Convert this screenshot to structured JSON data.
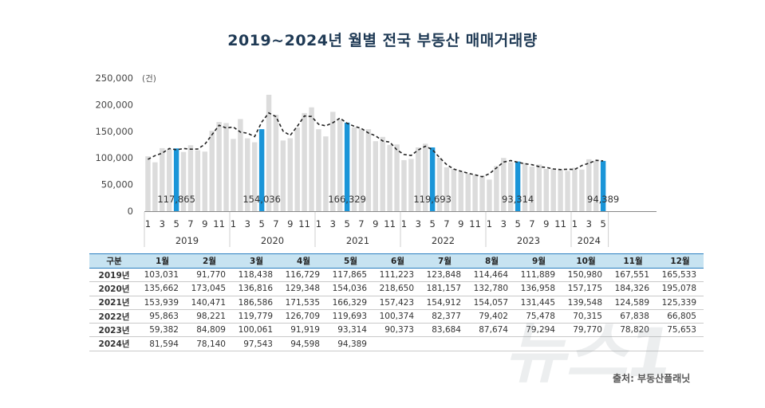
{
  "title": "2019~2024년 월별 전국 부동산 매매거래량",
  "source": "출처: 부동산플래닛",
  "watermark_text": "뉴스1",
  "colors": {
    "bar": "#dcdcdc",
    "highlight": "#1a95d8",
    "line": "#222222",
    "axis": "#888888",
    "header_bg": "#c7e3f1"
  },
  "chart_data": {
    "type": "bar",
    "unit": "(건)",
    "ylim": [
      0,
      250000
    ],
    "yticks": [
      "250,000",
      "200,000",
      "150,000",
      "100,000",
      "50,000",
      "0"
    ],
    "ytick_values": [
      250000,
      200000,
      150000,
      100000,
      50000,
      0
    ],
    "month_ticks": [
      "1",
      "3",
      "5",
      "7",
      "9",
      "11"
    ],
    "years": [
      "2019",
      "2020",
      "2021",
      "2022",
      "2023",
      "2024"
    ],
    "values": [
      103031,
      91770,
      118438,
      116729,
      117865,
      111223,
      123848,
      114464,
      111889,
      150980,
      167551,
      165533,
      135662,
      173045,
      136816,
      129348,
      154036,
      218650,
      181157,
      132780,
      136958,
      157175,
      184326,
      195078,
      153939,
      140471,
      186586,
      171535,
      166329,
      157423,
      154912,
      154057,
      131445,
      139548,
      124589,
      125339,
      95863,
      98221,
      119779,
      126709,
      119693,
      100374,
      82377,
      79402,
      75478,
      70315,
      67838,
      66805,
      59382,
      84809,
      100061,
      91919,
      93314,
      90373,
      83684,
      87674,
      79294,
      79770,
      78820,
      75653,
      81594,
      78140,
      97543,
      94598,
      94389
    ],
    "highlights": [
      {
        "index": 4,
        "label": "117,865"
      },
      {
        "index": 16,
        "label": "154,036"
      },
      {
        "index": 28,
        "label": "166,329"
      },
      {
        "index": 40,
        "label": "119,693"
      },
      {
        "index": 52,
        "label": "93,314"
      },
      {
        "index": 64,
        "label": "94,389"
      }
    ],
    "trend_line": "dashed moving average"
  },
  "table": {
    "header": [
      "구분",
      "1월",
      "2월",
      "3월",
      "4월",
      "5월",
      "6월",
      "7월",
      "8월",
      "9월",
      "10월",
      "11월",
      "12월"
    ],
    "rows": [
      {
        "year": "2019년",
        "cells": [
          "103,031",
          "91,770",
          "118,438",
          "116,729",
          "117,865",
          "111,223",
          "123,848",
          "114,464",
          "111,889",
          "150,980",
          "167,551",
          "165,533"
        ]
      },
      {
        "year": "2020년",
        "cells": [
          "135,662",
          "173,045",
          "136,816",
          "129,348",
          "154,036",
          "218,650",
          "181,157",
          "132,780",
          "136,958",
          "157,175",
          "184,326",
          "195,078"
        ]
      },
      {
        "year": "2021년",
        "cells": [
          "153,939",
          "140,471",
          "186,586",
          "171,535",
          "166,329",
          "157,423",
          "154,912",
          "154,057",
          "131,445",
          "139,548",
          "124,589",
          "125,339"
        ]
      },
      {
        "year": "2022년",
        "cells": [
          "95,863",
          "98,221",
          "119,779",
          "126,709",
          "119,693",
          "100,374",
          "82,377",
          "79,402",
          "75,478",
          "70,315",
          "67,838",
          "66,805"
        ]
      },
      {
        "year": "2023년",
        "cells": [
          "59,382",
          "84,809",
          "100,061",
          "91,919",
          "93,314",
          "90,373",
          "83,684",
          "87,674",
          "79,294",
          "79,770",
          "78,820",
          "75,653"
        ]
      },
      {
        "year": "2024년",
        "cells": [
          "81,594",
          "78,140",
          "97,543",
          "94,598",
          "94,389",
          "",
          "",
          "",
          "",
          "",
          "",
          ""
        ]
      }
    ]
  }
}
